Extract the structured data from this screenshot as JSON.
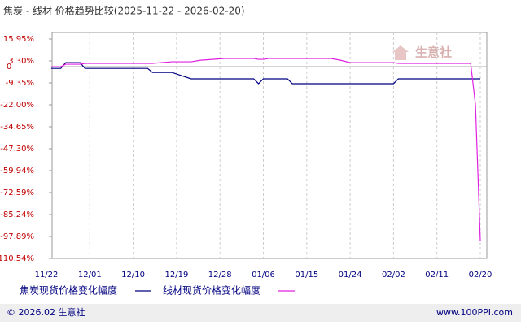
{
  "chart_data": {
    "type": "line",
    "title": "焦炭 - 线材 价格趋势比较(2025-11-22 - 2026-02-20)",
    "watermark": "生意社",
    "footer_left": "© 2026.02 生意社",
    "footer_right": "www.100PPI.com",
    "x": [
      1,
      3,
      4,
      7,
      8,
      21,
      22,
      26,
      30,
      32,
      37,
      43,
      44,
      45,
      46,
      50,
      51,
      59,
      61,
      63,
      72,
      73,
      88,
      89,
      90
    ],
    "series": [
      {
        "name": "焦炭现货价格变化幅度",
        "color": "#000080",
        "values": [
          -1,
          -1,
          2.3,
          2.3,
          -1,
          -1,
          -3.3,
          -3.3,
          -7,
          -7,
          -7,
          -7,
          -9.8,
          -7,
          -7,
          -7,
          -9.8,
          -9.8,
          -9.8,
          -9.8,
          -9.8,
          -7,
          -7,
          -7,
          -7
        ]
      },
      {
        "name": "线材现货价格变化幅度",
        "color": "#e020e0",
        "values": [
          0,
          0,
          1.4,
          1.4,
          1.9,
          1.9,
          1.9,
          2.8,
          2.8,
          3.7,
          4.7,
          4.7,
          4.2,
          4.2,
          4.7,
          4.7,
          4.7,
          4.7,
          3.7,
          2.3,
          2.3,
          1.9,
          1.9,
          -22,
          -100.3
        ]
      }
    ],
    "xlim": [
      0,
      90
    ],
    "xticks": [
      {
        "value": 0,
        "label": "11/22"
      },
      {
        "value": 9,
        "label": "12/01"
      },
      {
        "value": 18,
        "label": "12/10"
      },
      {
        "value": 27,
        "label": "12/19"
      },
      {
        "value": 36,
        "label": "12/28"
      },
      {
        "value": 45,
        "label": "01/06"
      },
      {
        "value": 54,
        "label": "01/15"
      },
      {
        "value": 63,
        "label": "01/24"
      },
      {
        "value": 72,
        "label": "02/02"
      },
      {
        "value": 81,
        "label": "02/11"
      },
      {
        "value": 90,
        "label": "02/20"
      }
    ],
    "ylim": [
      -110.54,
      15.95
    ],
    "yticks": [
      {
        "value": 15.95,
        "label": "15.95%"
      },
      {
        "value": 3.3,
        "label": "3.30%"
      },
      0,
      {
        "value": -9.35,
        "label": "-9.35%"
      },
      {
        "value": -22,
        "label": "-22.00%"
      },
      {
        "value": -34.65,
        "label": "-34.65%"
      },
      {
        "value": -47.3,
        "label": "-47.30%"
      },
      {
        "value": -59.94,
        "label": "-59.94%"
      },
      {
        "value": -72.59,
        "label": "-72.59%"
      },
      {
        "value": -85.24,
        "label": "-85.24%"
      },
      {
        "value": -97.89,
        "label": "-97.89%"
      },
      {
        "value": -110.54,
        "label": "-110.54%"
      }
    ],
    "grid": true
  }
}
